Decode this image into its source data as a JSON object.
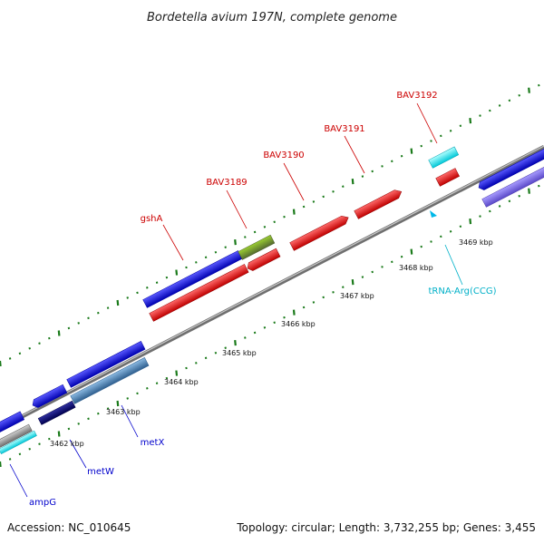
{
  "title": "Bordetella avium 197N, complete genome",
  "footer": {
    "accession": "Accession: NC_010645",
    "topology": "Topology: circular; Length: 3,732,255 bp; Genes: 3,455"
  },
  "kbp_labels": [
    "3462 kbp",
    "3463 kbp",
    "3464 kbp",
    "3465 kbp",
    "3466 kbp",
    "3467 kbp",
    "3468 kbp",
    "3469 kbp"
  ],
  "gene_labels": {
    "gshA": "gshA",
    "bav3189": "BAV3189",
    "bav3190": "BAV3190",
    "bav3191": "BAV3191",
    "bav3192": "BAV3192",
    "trna": "tRNA-Arg(CCG)",
    "metX": "metX",
    "metW": "metW",
    "ampG": "ampG"
  },
  "colors": {
    "red_label": "#cc0000",
    "blue_label": "#0000cc",
    "cyan_label": "#00b0c8",
    "backbone": "#888888",
    "tick": "#1a7a1a",
    "cds_blue": "#1010e0",
    "cds_red": "#ee1010",
    "cds_olive": "#6b8e23",
    "cds_cyan": "#00e5ee",
    "cds_purple": "#7b68ee",
    "cds_steel": "#4682b4",
    "cds_navy": "#000080"
  }
}
